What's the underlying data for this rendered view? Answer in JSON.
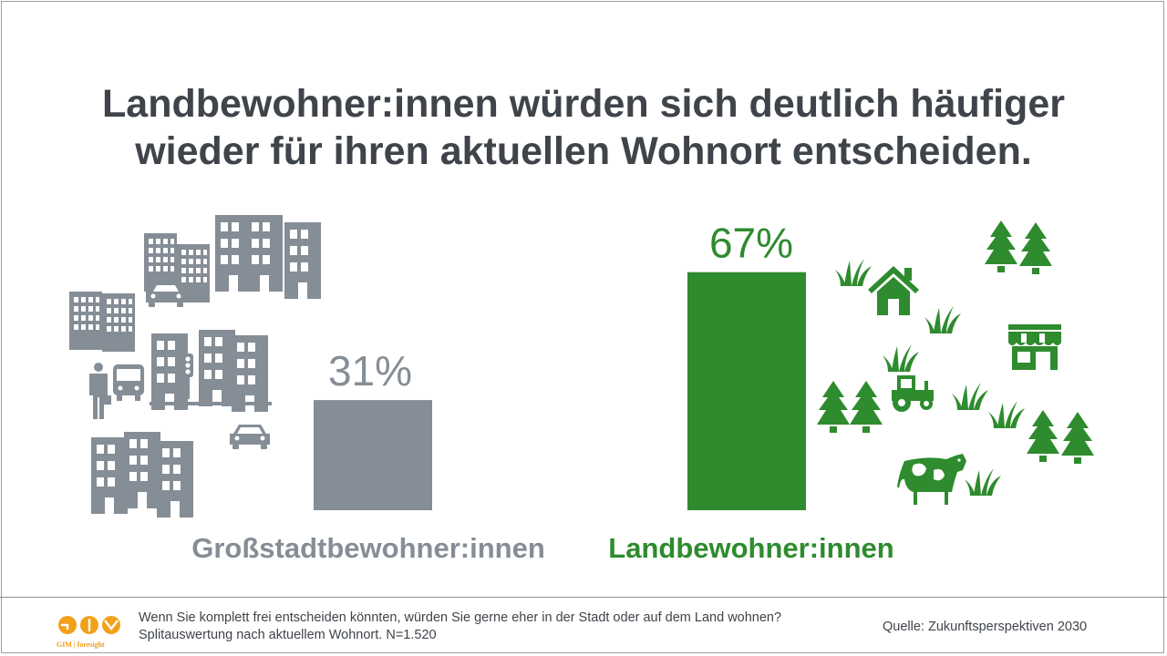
{
  "title_lines": [
    "Landbewohner:innen würden sich deutlich häufiger",
    "wieder für ihren aktuellen Wohnort entscheiden."
  ],
  "colors": {
    "city": "#858d96",
    "country": "#2e8b2e",
    "text_dark": "#3f444a",
    "logo": "#f2a01a"
  },
  "chart_data": {
    "type": "bar",
    "categories": [
      "Großstadtbewohner:innen",
      "Landbewohner:innen"
    ],
    "values": [
      31,
      67
    ],
    "value_labels": [
      "31%",
      "67%"
    ],
    "unit": "%",
    "ylim": [
      0,
      100
    ],
    "grid": false,
    "legend": false
  },
  "icons": {
    "city_side": [
      "office-building-icon",
      "cars-icon",
      "businessman-icon",
      "bus-icon",
      "traffic-light-icon",
      "car-icon"
    ],
    "country_side": [
      "fir-tree-icon",
      "grass-icon",
      "house-icon",
      "shop-icon",
      "tractor-icon",
      "cow-icon"
    ]
  },
  "footer": {
    "logo_text": "GIM | foresight",
    "question_line1": "Wenn Sie komplett frei entscheiden könnten, würden Sie gerne eher in der Stadt oder auf dem Land wohnen?",
    "question_line2": "Splitauswertung nach aktuellem Wohnort. N=1.520",
    "source": "Quelle: Zukunftsperspektiven 2030"
  }
}
